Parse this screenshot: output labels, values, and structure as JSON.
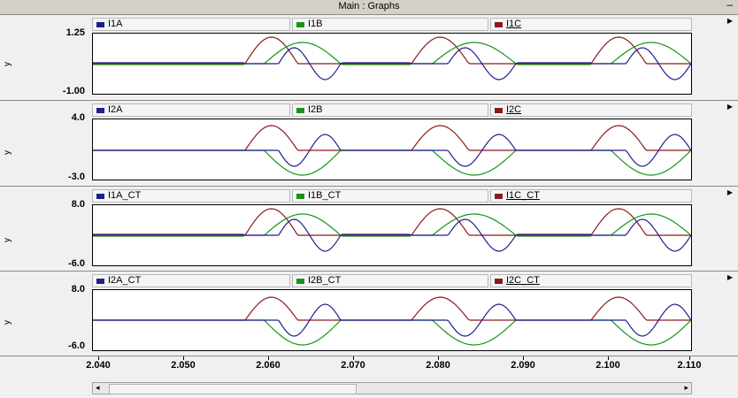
{
  "window": {
    "title": "Main : Graphs",
    "minimize_label": "–"
  },
  "colors": {
    "phase_a": "#1f1f8f",
    "phase_b": "#179417",
    "phase_c": "#8b1a1a"
  },
  "chart_data": [
    {
      "type": "line",
      "ylabel": "y",
      "yticks": [
        "1.25",
        "-1.00"
      ],
      "ylim": [
        -1.0,
        1.25
      ],
      "series": [
        {
          "name": "I1A"
        },
        {
          "name": "I1B"
        },
        {
          "name": "I1C"
        }
      ]
    },
    {
      "type": "line",
      "ylabel": "y",
      "yticks": [
        "4.0",
        "-3.0"
      ],
      "ylim": [
        -3.0,
        4.0
      ],
      "series": [
        {
          "name": "I2A"
        },
        {
          "name": "I2B"
        },
        {
          "name": "I2C"
        }
      ]
    },
    {
      "type": "line",
      "ylabel": "y",
      "yticks": [
        "8.0",
        "-6.0"
      ],
      "ylim": [
        -6.0,
        8.0
      ],
      "series": [
        {
          "name": "I1A_CT"
        },
        {
          "name": "I1B_CT"
        },
        {
          "name": "I1C_CT"
        }
      ]
    },
    {
      "type": "line",
      "ylabel": "y",
      "yticks": [
        "8.0",
        "-6.0"
      ],
      "ylim": [
        -6.0,
        8.0
      ],
      "series": [
        {
          "name": "I2A_CT"
        },
        {
          "name": "I2B_CT"
        },
        {
          "name": "I2C_CT"
        }
      ]
    }
  ],
  "xaxis": {
    "ticks": [
      "2.040",
      "2.050",
      "2.060",
      "2.070",
      "2.080",
      "2.090",
      "2.100",
      "2.110"
    ],
    "xlim": [
      2.04,
      2.11
    ]
  },
  "scrollbar": {
    "left_arrow": "◂",
    "right_arrow": "▸"
  }
}
